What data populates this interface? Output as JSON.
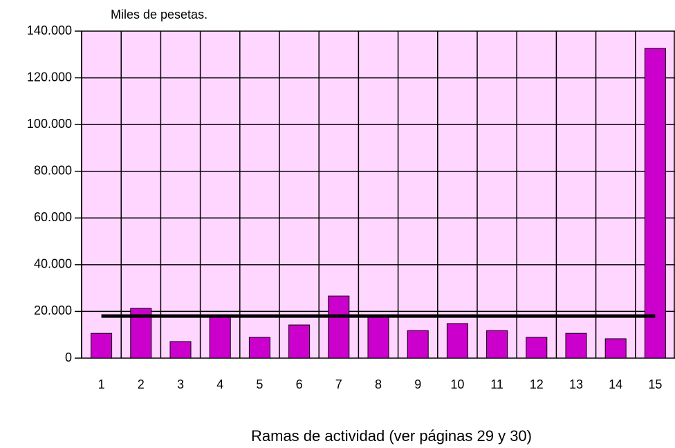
{
  "chart_data": {
    "type": "bar",
    "y_axis_label": "Miles de pesetas.",
    "x_axis_label": "Ramas de actividad (ver páginas 29 y 30)",
    "categories": [
      "1",
      "2",
      "3",
      "4",
      "5",
      "6",
      "7",
      "8",
      "9",
      "10",
      "11",
      "12",
      "13",
      "14",
      "15"
    ],
    "values": [
      10600,
      21300,
      7100,
      17800,
      8900,
      14200,
      26600,
      17800,
      11800,
      14800,
      11800,
      8900,
      10600,
      8300,
      132600
    ],
    "color": "#cc00cc",
    "reference_line": {
      "value": 18000,
      "color": "#000000"
    },
    "plot_background": "#ffd6ff",
    "ylim": [
      0,
      140000
    ],
    "yticks": [
      0,
      {
        "value": 20000,
        "label": "20.000"
      },
      {
        "value": 40000,
        "label": "40.000"
      },
      {
        "value": 60000,
        "label": "60.000"
      },
      {
        "value": 80000,
        "label": "80.000"
      },
      {
        "value": 100000,
        "label": "100.000"
      },
      {
        "value": 120000,
        "label": "120.000"
      },
      {
        "value": 140000,
        "label": "140.000"
      }
    ],
    "grid": true
  }
}
